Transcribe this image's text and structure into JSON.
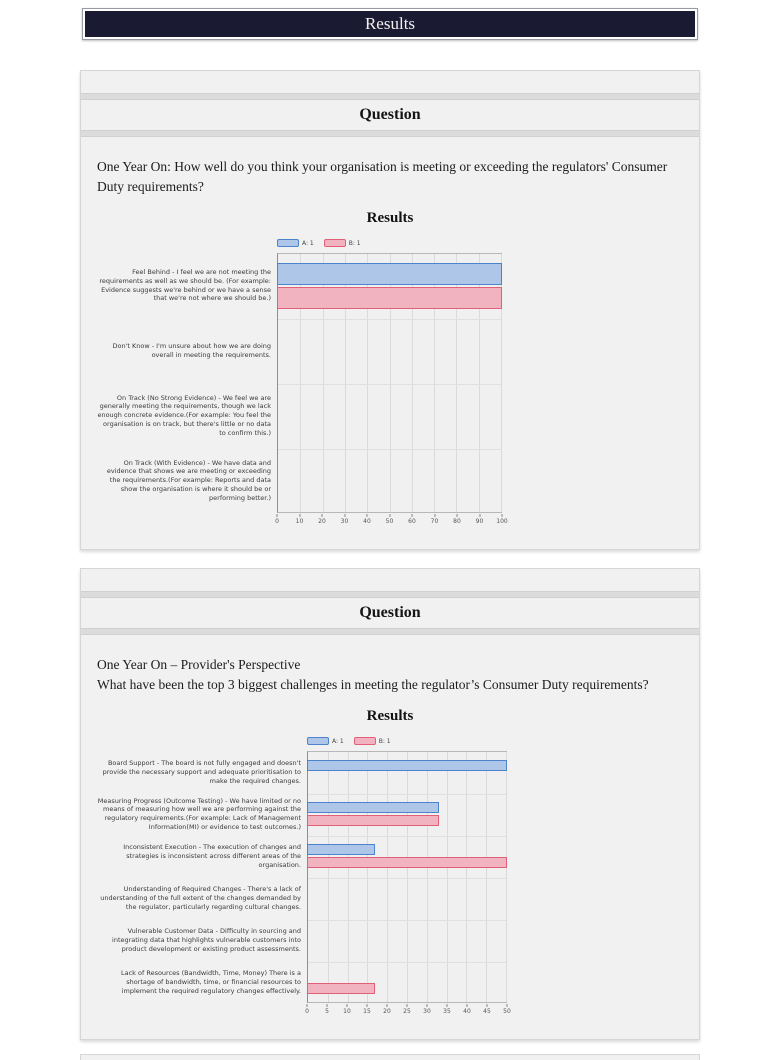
{
  "banner": {
    "title": "Results"
  },
  "sections": [
    {
      "header": "Question",
      "question_lines": [
        "One Year On: How well do you think your organisation is meeting or exceeding the regulators' Consumer Duty requirements?"
      ]
    },
    {
      "header": "Question",
      "question_lines": [
        "One Year On – Provider's Perspective",
        "What have been the top 3 biggest challenges in meeting the regulator’s Consumer Duty requirements?"
      ]
    }
  ],
  "chart_data": [
    {
      "type": "bar",
      "orientation": "horizontal",
      "title": "Results",
      "legend_position": "top-left",
      "grid": true,
      "xlim": [
        0,
        100
      ],
      "xticks": [
        0,
        10,
        20,
        30,
        40,
        50,
        60,
        70,
        80,
        90,
        100
      ],
      "categories": [
        "Feel Behind - I feel we are not meeting the requirements as well as we should be. (For example: Evidence suggests we're behind or we have a sense that we're not where we should be.)",
        "Don't Know - I'm unsure about how we are doing overall in meeting the requirements.",
        "On Track (No Strong Evidence) - We feel we are generally meeting the requirements, though we lack enough concrete evidence.(For example: You feel the organisation is on track, but there's little or no data to confirm this.)",
        "On Track (With Evidence) - We have data and evidence that shows we are meeting or exceeding the requirements.(For example: Reports and data show the organisation is where it should be or performing better.)"
      ],
      "series": [
        {
          "name": "A: 1",
          "fill": "#aec7e8",
          "border": "#4d82cc",
          "values": [
            100,
            0,
            0,
            0
          ]
        },
        {
          "name": "B: 1",
          "fill": "#f2b3c1",
          "border": "#e0607a",
          "values": [
            100,
            0,
            0,
            0
          ]
        }
      ]
    },
    {
      "type": "bar",
      "orientation": "horizontal",
      "title": "Results",
      "legend_position": "top-left",
      "grid": true,
      "xlim": [
        0,
        50
      ],
      "xticks": [
        0,
        5,
        10,
        15,
        20,
        25,
        30,
        35,
        40,
        45,
        50
      ],
      "categories": [
        "Board Support - The board is not fully engaged and doesn't provide the necessary support and adequate prioritisation to make the required changes.",
        "Measuring Progress (Outcome Testing) - We have limited or no means of measuring how well we are performing against the regulatory requirements.(For example: Lack of Management Information(MI) or evidence to test outcomes.)",
        "Inconsistent Execution - The execution of changes and strategies is inconsistent across different areas of the organisation.",
        "Understanding of Required Changes - There's a lack of understanding of the full extent of the changes demanded by the regulator, particularly regarding cultural changes.",
        "Vulnerable Customer Data - Difficulty in sourcing and integrating data that highlights vulnerable customers into product development or existing product assessments.",
        "Lack of Resources (Bandwidth, Time, Money) There is a shortage of bandwidth, time, or financial resources to implement the required regulatory changes effectively."
      ],
      "series": [
        {
          "name": "A: 1",
          "fill": "#aec7e8",
          "border": "#4d82cc",
          "values": [
            50,
            33,
            17,
            0,
            0,
            0
          ]
        },
        {
          "name": "B: 1",
          "fill": "#f2b3c1",
          "border": "#e0607a",
          "values": [
            0,
            33,
            50,
            0,
            0,
            17
          ]
        }
      ]
    }
  ]
}
